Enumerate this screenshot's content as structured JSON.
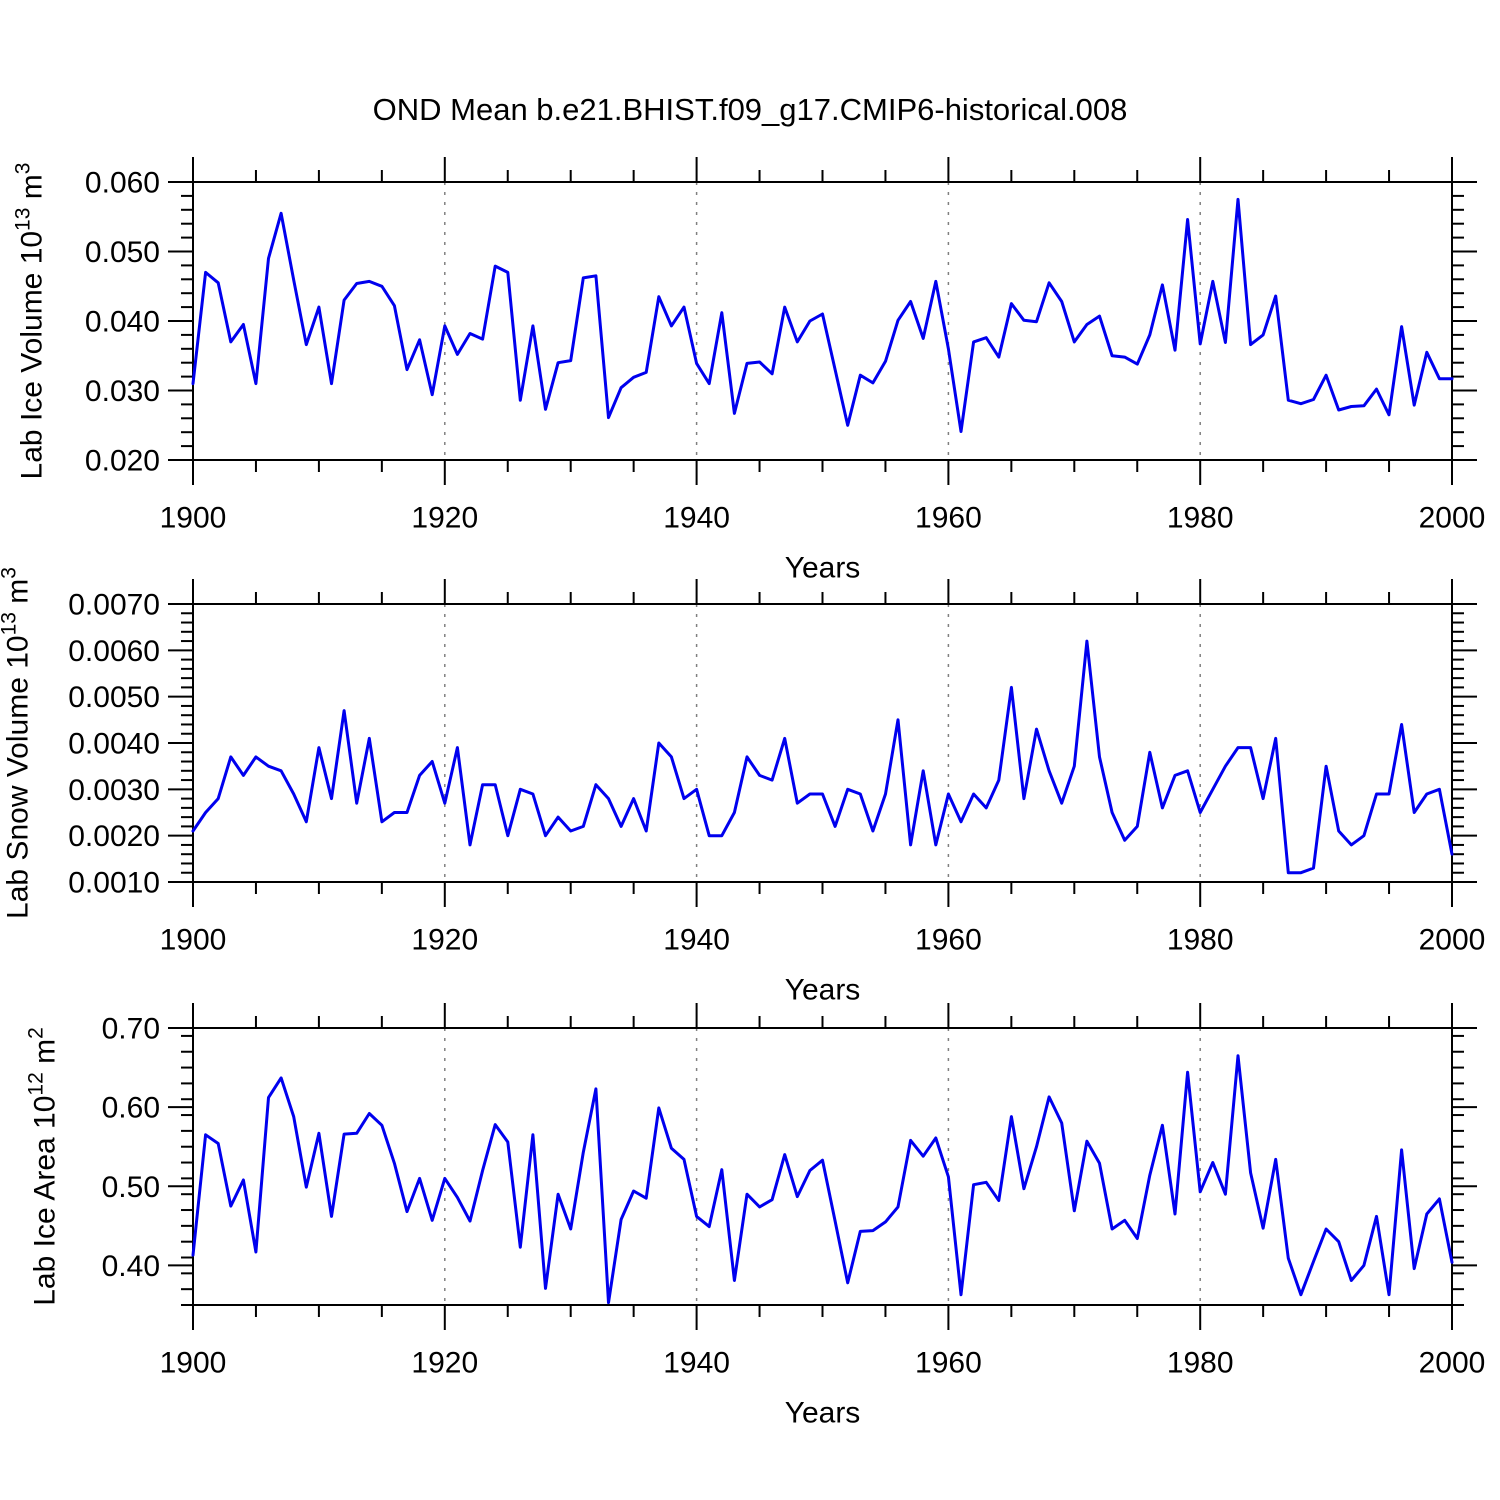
{
  "title": "OND Mean b.e21.BHIST.f09_g17.CMIP6-historical.008",
  "colors": {
    "line": "#0000EE",
    "axis": "#000000",
    "gridline": "#808080",
    "background": "#ffffff"
  },
  "chart_data": [
    {
      "type": "line",
      "panel": "ice-volume",
      "ylabel": "Lab Ice Volume 10¹³ m³",
      "ylabel_parts": [
        {
          "t": "Lab Ice Volume 10"
        },
        {
          "t": "13",
          "sup": true
        },
        {
          "t": " m"
        },
        {
          "t": "3",
          "sup": true
        }
      ],
      "xlabel": "Years",
      "x": {
        "start": 1900,
        "end": 2000,
        "step": 1
      },
      "xlim": [
        1900,
        2000
      ],
      "ylim": [
        0.02,
        0.06
      ],
      "xticks_major": [
        1900,
        1920,
        1940,
        1960,
        1980,
        2000
      ],
      "xtick_labels": [
        "1900",
        "1920",
        "1940",
        "1960",
        "1980",
        "2000"
      ],
      "xminor_step": 5,
      "yticks_major": [
        0.02,
        0.03,
        0.04,
        0.05,
        0.06
      ],
      "ytick_labels": [
        "0.020",
        "0.030",
        "0.040",
        "0.050",
        "0.060"
      ],
      "yminor_step": 0.002,
      "grid_x": [
        1920,
        1940,
        1960,
        1980
      ],
      "legend": "none",
      "values": [
        0.031,
        0.047,
        0.0455,
        0.037,
        0.0395,
        0.031,
        0.049,
        0.0555,
        0.0459,
        0.0366,
        0.042,
        0.031,
        0.043,
        0.0454,
        0.0457,
        0.045,
        0.0422,
        0.033,
        0.0373,
        0.0294,
        0.0393,
        0.0352,
        0.0382,
        0.0374,
        0.0479,
        0.047,
        0.0286,
        0.0393,
        0.0273,
        0.034,
        0.0343,
        0.0462,
        0.0465,
        0.0261,
        0.0304,
        0.0319,
        0.0326,
        0.0435,
        0.0393,
        0.042,
        0.0339,
        0.031,
        0.0412,
        0.0267,
        0.0339,
        0.0341,
        0.0324,
        0.042,
        0.037,
        0.04,
        0.041,
        0.033,
        0.025,
        0.0322,
        0.0311,
        0.0342,
        0.0401,
        0.0428,
        0.0375,
        0.0457,
        0.036,
        0.0241,
        0.037,
        0.0376,
        0.0348,
        0.0425,
        0.0401,
        0.0399,
        0.0455,
        0.0428,
        0.037,
        0.0395,
        0.0407,
        0.035,
        0.0348,
        0.0338,
        0.038,
        0.0452,
        0.0358,
        0.0546,
        0.0367,
        0.0457,
        0.0369,
        0.0575,
        0.0366,
        0.038,
        0.0436,
        0.0286,
        0.0281,
        0.0287,
        0.0322,
        0.0272,
        0.0277,
        0.0278,
        0.0302,
        0.0265,
        0.0392,
        0.0279,
        0.0355,
        0.0317,
        0.0317
      ]
    },
    {
      "type": "line",
      "panel": "snow-volume",
      "ylabel": "Lab Snow Volume 10¹³ m³",
      "ylabel_parts": [
        {
          "t": "Lab Snow Volume 10"
        },
        {
          "t": "13",
          "sup": true
        },
        {
          "t": " m"
        },
        {
          "t": "3",
          "sup": true
        }
      ],
      "xlabel": "Years",
      "x": {
        "start": 1900,
        "end": 2000,
        "step": 1
      },
      "xlim": [
        1900,
        2000
      ],
      "ylim": [
        0.001,
        0.007
      ],
      "xticks_major": [
        1900,
        1920,
        1940,
        1960,
        1980,
        2000
      ],
      "xtick_labels": [
        "1900",
        "1920",
        "1940",
        "1960",
        "1980",
        "2000"
      ],
      "xminor_step": 5,
      "yticks_major": [
        0.001,
        0.002,
        0.003,
        0.004,
        0.005,
        0.006,
        0.007
      ],
      "ytick_labels": [
        "0.0010",
        "0.0020",
        "0.0030",
        "0.0040",
        "0.0050",
        "0.0060",
        "0.0070"
      ],
      "yminor_step": 0.0002,
      "grid_x": [
        1920,
        1940,
        1960,
        1980
      ],
      "legend": "none",
      "values": [
        0.0021,
        0.0025,
        0.0028,
        0.0037,
        0.0033,
        0.0037,
        0.0035,
        0.0034,
        0.0029,
        0.0023,
        0.0039,
        0.0028,
        0.0047,
        0.0027,
        0.0041,
        0.0023,
        0.0025,
        0.0025,
        0.0033,
        0.0036,
        0.0027,
        0.0039,
        0.0018,
        0.0031,
        0.0031,
        0.002,
        0.003,
        0.0029,
        0.002,
        0.0024,
        0.0021,
        0.0022,
        0.0031,
        0.0028,
        0.0022,
        0.0028,
        0.0021,
        0.004,
        0.0037,
        0.0028,
        0.003,
        0.002,
        0.002,
        0.0025,
        0.0037,
        0.0033,
        0.0032,
        0.0041,
        0.0027,
        0.0029,
        0.0029,
        0.0022,
        0.003,
        0.0029,
        0.0021,
        0.0029,
        0.0045,
        0.0018,
        0.0034,
        0.0018,
        0.0029,
        0.0023,
        0.0029,
        0.0026,
        0.0032,
        0.0052,
        0.0028,
        0.0043,
        0.0034,
        0.0027,
        0.0035,
        0.0062,
        0.0037,
        0.0025,
        0.0019,
        0.0022,
        0.0038,
        0.0026,
        0.0033,
        0.0034,
        0.0025,
        0.003,
        0.0035,
        0.0039,
        0.0039,
        0.0028,
        0.0041,
        0.0012,
        0.0012,
        0.0013,
        0.0035,
        0.0021,
        0.0018,
        0.002,
        0.0029,
        0.0029,
        0.0044,
        0.0025,
        0.0029,
        0.003,
        0.0016
      ]
    },
    {
      "type": "line",
      "panel": "ice-area",
      "ylabel": "Lab Ice Area 10¹² m²",
      "ylabel_parts": [
        {
          "t": "Lab Ice Area 10"
        },
        {
          "t": "12",
          "sup": true
        },
        {
          "t": " m"
        },
        {
          "t": "2",
          "sup": true
        }
      ],
      "xlabel": "Years",
      "x": {
        "start": 1900,
        "end": 2000,
        "step": 1
      },
      "xlim": [
        1900,
        2000
      ],
      "ylim": [
        0.35,
        0.7
      ],
      "xticks_major": [
        1900,
        1920,
        1940,
        1960,
        1980,
        2000
      ],
      "xtick_labels": [
        "1900",
        "1920",
        "1940",
        "1960",
        "1980",
        "2000"
      ],
      "xminor_step": 5,
      "yticks_major": [
        0.4,
        0.5,
        0.6,
        0.7
      ],
      "ytick_labels": [
        "0.40",
        "0.50",
        "0.60",
        "0.70"
      ],
      "yminor_step": 0.02,
      "grid_x": [
        1920,
        1940,
        1960,
        1980
      ],
      "legend": "none",
      "values": [
        0.413,
        0.565,
        0.554,
        0.475,
        0.508,
        0.417,
        0.612,
        0.637,
        0.588,
        0.499,
        0.567,
        0.462,
        0.566,
        0.567,
        0.592,
        0.577,
        0.529,
        0.468,
        0.51,
        0.457,
        0.51,
        0.486,
        0.456,
        0.52,
        0.578,
        0.556,
        0.423,
        0.565,
        0.371,
        0.49,
        0.446,
        0.543,
        0.623,
        0.353,
        0.458,
        0.494,
        0.485,
        0.599,
        0.548,
        0.534,
        0.462,
        0.449,
        0.521,
        0.381,
        0.49,
        0.474,
        0.483,
        0.54,
        0.487,
        0.52,
        0.533,
        0.456,
        0.378,
        0.443,
        0.444,
        0.455,
        0.474,
        0.558,
        0.538,
        0.561,
        0.512,
        0.363,
        0.502,
        0.505,
        0.482,
        0.588,
        0.497,
        0.55,
        0.613,
        0.58,
        0.469,
        0.557,
        0.529,
        0.446,
        0.457,
        0.434,
        0.514,
        0.577,
        0.465,
        0.644,
        0.493,
        0.53,
        0.49,
        0.665,
        0.517,
        0.447,
        0.534,
        0.409,
        0.363,
        0.405,
        0.446,
        0.43,
        0.381,
        0.4,
        0.462,
        0.363,
        0.546,
        0.396,
        0.465,
        0.484,
        0.404
      ]
    }
  ]
}
